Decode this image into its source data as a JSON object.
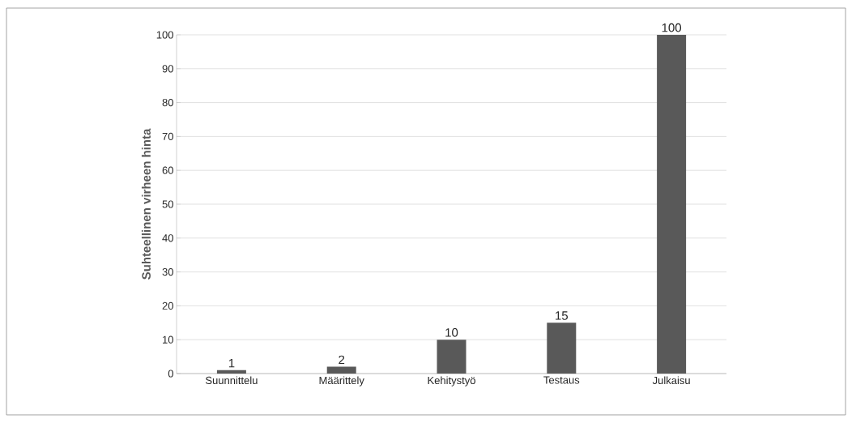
{
  "chart_data": {
    "type": "bar",
    "ylabel": "Suhteellinen virheen hinta",
    "categories": [
      "Suunnittelu",
      "Määrittely",
      "Kehitystyö",
      "Testaus",
      "Julkaisu"
    ],
    "values": [
      1,
      2,
      10,
      15,
      100
    ],
    "color": "#595959",
    "ylim": [
      0,
      100
    ],
    "yticks": [
      0,
      10,
      20,
      30,
      40,
      50,
      60,
      70,
      80,
      90,
      100
    ],
    "grid": "y",
    "data_labels": true
  }
}
